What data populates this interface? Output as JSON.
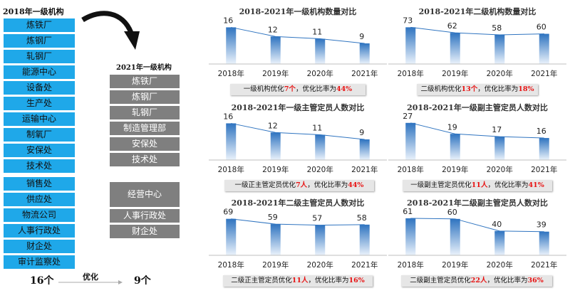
{
  "left": {
    "title_2018": "2018年一级机构",
    "list_2018": [
      "炼铁厂",
      "炼钢厂",
      "轧钢厂",
      "能源中心",
      "设备处",
      "生产处",
      "运输中心",
      "制氧厂",
      "安保处",
      "技术处",
      "销售处",
      "供应处",
      "物流公司",
      "人事行政处",
      "财企处",
      "审计监察处"
    ],
    "title_2021": "2021年一级机构",
    "list_2021": [
      "炼铁厂",
      "炼钢厂",
      "轧钢厂",
      "制造管理部",
      "安保处",
      "技术处",
      "经营中心",
      "人事行政处",
      "财企处"
    ],
    "count_2018": "16个",
    "count_2021": "9个",
    "arrow_label": "优化"
  },
  "colors": {
    "bar_dark": "#2f74c0",
    "bar_light": "#eaf2fb",
    "list_blue": "#1fa8e9",
    "list_gray": "#7f7f7f",
    "highlight": "#e81010"
  },
  "chart_data": [
    {
      "type": "bar",
      "title": "2018-2021年一级机构数量对比",
      "categories": [
        "2018年",
        "2019年",
        "2020年",
        "2021年"
      ],
      "values": [
        16,
        12,
        11,
        9
      ],
      "ylim": [
        0,
        18
      ],
      "note": {
        "prefix": "一级机构优化",
        "n": "7个",
        "mid": "，优化比率为",
        "pct": "44%"
      }
    },
    {
      "type": "bar",
      "title": "2018-2021年二级机构数量对比",
      "categories": [
        "2018年",
        "2019年",
        "2020年",
        "2021年"
      ],
      "values": [
        73,
        62,
        58,
        60
      ],
      "ylim": [
        0,
        82
      ],
      "note": {
        "prefix": "二级机构优化",
        "n": "13个",
        "mid": "，优化比率为",
        "pct": "18%"
      }
    },
    {
      "type": "bar",
      "title": "2018-2021年一级主管定员人数对比",
      "categories": [
        "2018年",
        "2019年",
        "2020年",
        "2021年"
      ],
      "values": [
        16,
        12,
        11,
        9
      ],
      "ylim": [
        0,
        18
      ],
      "note": {
        "prefix": "一级正主管定员优化",
        "n": "7人",
        "mid": "，优化比率为",
        "pct": "44%"
      }
    },
    {
      "type": "bar",
      "title": "2018-2021年一级副主管定员人数对比",
      "categories": [
        "2018年",
        "2019年",
        "2020年",
        "2021年"
      ],
      "values": [
        27,
        19,
        17,
        16
      ],
      "ylim": [
        0,
        30
      ],
      "note": {
        "prefix": "一级副主管定员优化",
        "n": "11人",
        "mid": "，优化比率为",
        "pct": "41%"
      }
    },
    {
      "type": "bar",
      "title": "2018-2021年二级主管定员人数对比",
      "categories": [
        "2018年",
        "2019年",
        "2020年",
        "2021年"
      ],
      "values": [
        69,
        59,
        57,
        58
      ],
      "ylim": [
        0,
        78
      ],
      "note": {
        "prefix": "二级正主管定员优化",
        "n": "11人",
        "mid": "，优化比率为",
        "pct": "16%"
      }
    },
    {
      "type": "bar",
      "title": "2018-2021年二级副主管定员人数对比",
      "categories": [
        "2018年",
        "2019年",
        "2020年",
        "2021年"
      ],
      "values": [
        61,
        60,
        40,
        39
      ],
      "ylim": [
        0,
        68
      ],
      "note": {
        "prefix": "二级副主管定员优化",
        "n": "22人",
        "mid": "，优化比率为",
        "pct": "36%"
      }
    }
  ]
}
